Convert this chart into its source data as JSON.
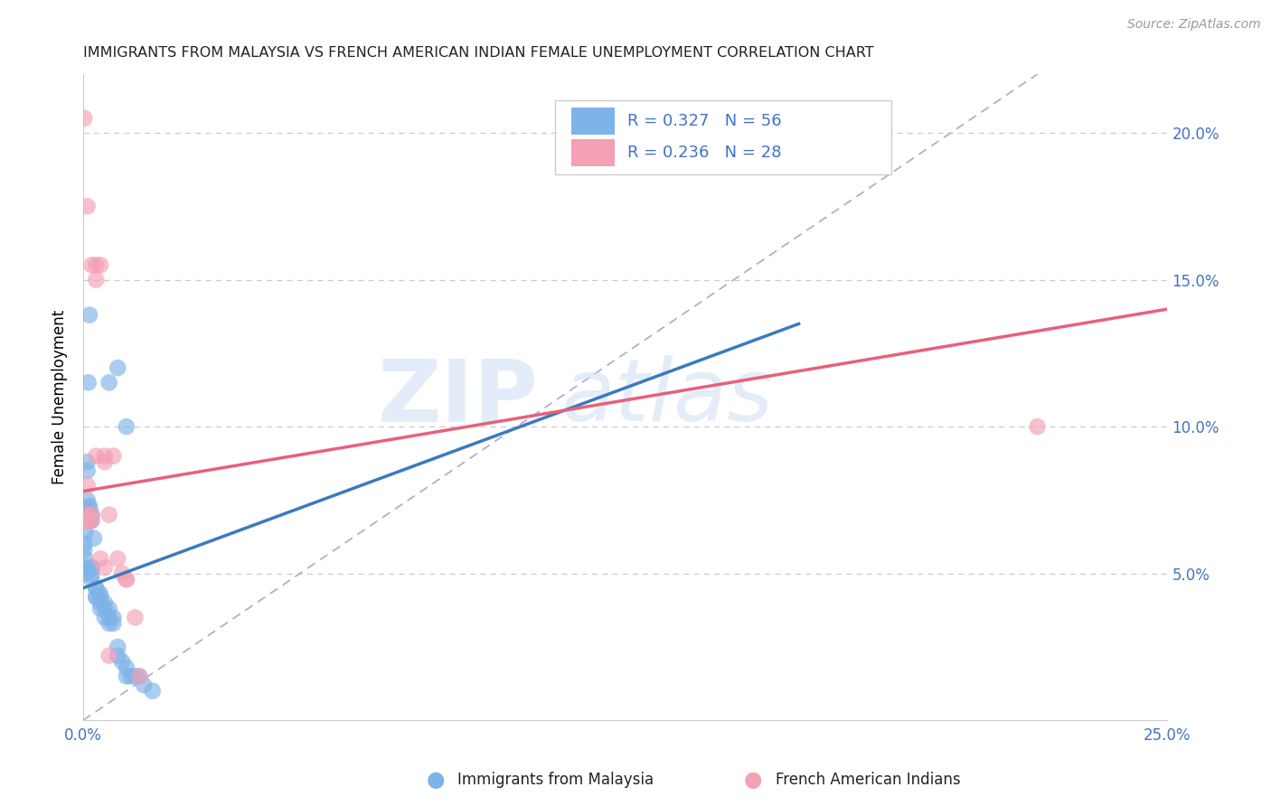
{
  "title": "IMMIGRANTS FROM MALAYSIA VS FRENCH AMERICAN INDIAN FEMALE UNEMPLOYMENT CORRELATION CHART",
  "source": "Source: ZipAtlas.com",
  "ylabel": "Female Unemployment",
  "xlim": [
    0.0,
    0.25
  ],
  "ylim": [
    0.0,
    0.22
  ],
  "x_ticks": [
    0.0,
    0.05,
    0.1,
    0.15,
    0.2,
    0.25
  ],
  "y_ticks_right": [
    0.05,
    0.1,
    0.15,
    0.2
  ],
  "y_tick_labels_right": [
    "5.0%",
    "10.0%",
    "15.0%",
    "20.0%"
  ],
  "legend_label1": "Immigrants from Malaysia",
  "legend_label2": "French American Indians",
  "blue_color": "#7EB3E8",
  "pink_color": "#F4A0B5",
  "blue_line_color": "#3a7abf",
  "pink_line_color": "#e8607a",
  "text_color": "#4472C4",
  "watermark": "ZIPatlas",
  "blue_x": [
    0.0005,
    0.0008,
    0.001,
    0.001,
    0.001,
    0.001,
    0.0012,
    0.0012,
    0.0015,
    0.0015,
    0.0015,
    0.0015,
    0.002,
    0.002,
    0.002,
    0.002,
    0.002,
    0.002,
    0.0025,
    0.003,
    0.003,
    0.003,
    0.003,
    0.004,
    0.004,
    0.004,
    0.004,
    0.005,
    0.005,
    0.005,
    0.006,
    0.006,
    0.006,
    0.007,
    0.007,
    0.008,
    0.008,
    0.009,
    0.01,
    0.01,
    0.011,
    0.012,
    0.013,
    0.014,
    0.016,
    0.0003,
    0.0003,
    0.0005,
    0.0005,
    0.0007,
    0.001,
    0.001,
    0.0012,
    0.0015,
    0.01,
    0.008,
    0.006
  ],
  "blue_y": [
    0.064,
    0.068,
    0.068,
    0.07,
    0.072,
    0.075,
    0.068,
    0.07,
    0.068,
    0.07,
    0.072,
    0.073,
    0.052,
    0.052,
    0.05,
    0.048,
    0.068,
    0.07,
    0.062,
    0.045,
    0.042,
    0.045,
    0.042,
    0.043,
    0.042,
    0.04,
    0.038,
    0.04,
    0.038,
    0.035,
    0.038,
    0.035,
    0.033,
    0.035,
    0.033,
    0.025,
    0.022,
    0.02,
    0.018,
    0.015,
    0.015,
    0.015,
    0.015,
    0.012,
    0.01,
    0.06,
    0.058,
    0.055,
    0.052,
    0.05,
    0.085,
    0.088,
    0.115,
    0.138,
    0.1,
    0.12,
    0.115
  ],
  "pink_x": [
    0.0003,
    0.0005,
    0.001,
    0.001,
    0.001,
    0.002,
    0.002,
    0.003,
    0.003,
    0.004,
    0.005,
    0.005,
    0.006,
    0.006,
    0.008,
    0.009,
    0.01,
    0.012,
    0.013,
    0.0003,
    0.001,
    0.002,
    0.003,
    0.004,
    0.005,
    0.007,
    0.01,
    0.22
  ],
  "pink_y": [
    0.068,
    0.068,
    0.068,
    0.07,
    0.08,
    0.07,
    0.068,
    0.15,
    0.155,
    0.155,
    0.09,
    0.088,
    0.07,
    0.022,
    0.055,
    0.05,
    0.048,
    0.035,
    0.015,
    0.205,
    0.175,
    0.155,
    0.09,
    0.055,
    0.052,
    0.09,
    0.048,
    0.1
  ],
  "blue_trend_x0": 0.0,
  "blue_trend_x1": 0.165,
  "blue_trend_y0": 0.045,
  "blue_trend_y1": 0.135,
  "pink_trend_x0": 0.0,
  "pink_trend_x1": 0.25,
  "pink_trend_y0": 0.078,
  "pink_trend_y1": 0.14,
  "ref_line_x0": 0.0,
  "ref_line_x1": 0.22,
  "ref_line_y0": 0.0,
  "ref_line_y1": 0.22
}
